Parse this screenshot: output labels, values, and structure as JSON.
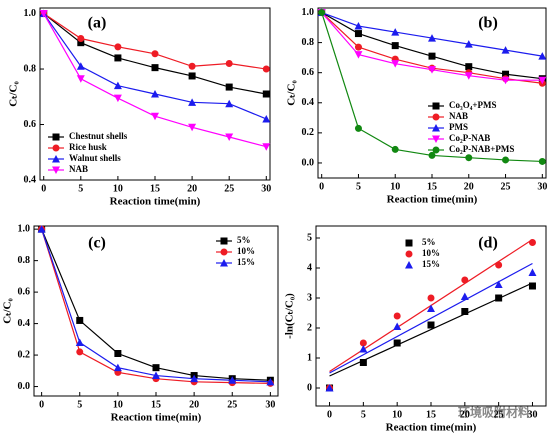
{
  "chart_data": [
    {
      "type": "line",
      "panel_label": "(a)",
      "xlabel": "Reaction time(min)",
      "ylabel": "Cₜ/C₀",
      "x": [
        0,
        5,
        10,
        15,
        20,
        25,
        30
      ],
      "xlim": [
        -0.5,
        30.5
      ],
      "xticks": [
        0,
        5,
        10,
        15,
        20,
        25,
        30
      ],
      "ylim": [
        0.4,
        1.02
      ],
      "yticks": [
        0.4,
        0.6,
        0.8,
        {
          "value": 1,
          "label": "1.0"
        }
      ],
      "legend": "lower left",
      "series": [
        {
          "name": "Chestnut shells",
          "color": "#000000",
          "marker": "square",
          "values": [
            1,
            0.895,
            0.84,
            0.805,
            0.775,
            0.735,
            0.71
          ]
        },
        {
          "name": "Rice husk",
          "color": "#ee1c25",
          "marker": "circle",
          "values": [
            1,
            0.91,
            0.88,
            0.855,
            0.81,
            0.82,
            0.8
          ]
        },
        {
          "name": "Walnut shells",
          "color": "#1c1cee",
          "marker": "triangle",
          "values": [
            1,
            0.81,
            0.74,
            0.71,
            0.68,
            0.675,
            0.62
          ]
        },
        {
          "name": "NAB",
          "color": "#ff00ff",
          "marker": "triangle-down",
          "values": [
            1,
            0.765,
            0.695,
            0.63,
            0.59,
            0.555,
            0.52
          ]
        }
      ]
    },
    {
      "type": "line",
      "panel_label": "(b)",
      "xlabel": "Reaction time(min)",
      "ylabel": "Cₜ/C₀",
      "x": [
        0,
        5,
        10,
        15,
        20,
        25,
        30
      ],
      "xlim": [
        -0.5,
        30.5
      ],
      "xticks": [
        0,
        5,
        10,
        15,
        20,
        25,
        30
      ],
      "ylim": [
        -0.1,
        1.03
      ],
      "yticks": [
        {
          "value": 0,
          "label": "0.0"
        },
        0.2,
        0.4,
        0.6,
        0.8,
        {
          "value": 1,
          "label": "1.0"
        }
      ],
      "legend": "lower right",
      "series": [
        {
          "name": "Co₃O₄+PMS",
          "color": "#000000",
          "marker": "square",
          "values": [
            1,
            0.86,
            0.78,
            0.71,
            0.64,
            0.59,
            0.56
          ]
        },
        {
          "name": "NAB",
          "color": "#ee1c25",
          "marker": "circle",
          "values": [
            1,
            0.77,
            0.69,
            0.63,
            0.6,
            0.56,
            0.53
          ]
        },
        {
          "name": "PMS",
          "color": "#1c1cee",
          "marker": "triangle",
          "values": [
            1,
            0.91,
            0.87,
            0.83,
            0.79,
            0.75,
            0.71
          ]
        },
        {
          "name": "Co₂P-NAB",
          "color": "#ff00ff",
          "marker": "triangle-down",
          "values": [
            1,
            0.72,
            0.66,
            0.62,
            0.58,
            0.55,
            0.55
          ]
        },
        {
          "name": "Co₂P-NAB+PMS",
          "color": "#118811",
          "marker": "circle",
          "values": [
            1,
            0.23,
            0.09,
            0.05,
            0.035,
            0.02,
            0.01
          ]
        }
      ]
    },
    {
      "type": "line",
      "panel_label": "(c)",
      "xlabel": "Reaction time(min)",
      "ylabel": "Cₜ/C₀",
      "x": [
        0,
        5,
        10,
        15,
        20,
        25,
        30
      ],
      "xlim": [
        -1,
        31
      ],
      "xticks": [
        0,
        5,
        10,
        15,
        20,
        25,
        30
      ],
      "ylim": [
        -0.06,
        1.02
      ],
      "yticks": [
        {
          "value": 0,
          "label": "0.0"
        },
        0.2,
        0.4,
        0.6,
        0.8,
        {
          "value": 1,
          "label": "1.0"
        }
      ],
      "legend": "upper right",
      "series": [
        {
          "name": "5%",
          "color": "#000000",
          "marker": "square",
          "values": [
            1,
            0.42,
            0.21,
            0.12,
            0.07,
            0.05,
            0.04
          ]
        },
        {
          "name": "10%",
          "color": "#ee1c25",
          "marker": "circle",
          "values": [
            1,
            0.22,
            0.09,
            0.05,
            0.03,
            0.025,
            0.02
          ]
        },
        {
          "name": "15%",
          "color": "#1c1cee",
          "marker": "triangle",
          "values": [
            1,
            0.28,
            0.12,
            0.07,
            0.05,
            0.04,
            0.03
          ]
        }
      ]
    },
    {
      "type": "scatter",
      "panel_label": "(d)",
      "xlabel": "Reaction time(min)",
      "ylabel": "-ln(Cₜ/C₀)",
      "x": [
        0,
        5,
        10,
        15,
        20,
        25,
        30
      ],
      "xlim": [
        -2,
        32
      ],
      "xticks": [
        0,
        5,
        10,
        15,
        20,
        25,
        30
      ],
      "ylim": [
        -0.6,
        5.4
      ],
      "yticks": [
        0,
        1,
        2,
        3,
        4,
        5
      ],
      "legend": "upper center",
      "fit_x": [
        0,
        30
      ],
      "series": [
        {
          "name": "5%",
          "color": "#000000",
          "marker": "square",
          "values": [
            0,
            0.85,
            1.5,
            2.1,
            2.55,
            3.0,
            3.4
          ],
          "fit": [
            0.4,
            3.5
          ]
        },
        {
          "name": "10%",
          "color": "#ee1c25",
          "marker": "circle",
          "values": [
            0,
            1.5,
            2.4,
            3.0,
            3.6,
            4.1,
            4.85
          ],
          "fit": [
            0.55,
            4.95
          ]
        },
        {
          "name": "15%",
          "color": "#1c1cee",
          "marker": "triangle",
          "values": [
            0,
            1.3,
            2.05,
            2.65,
            3.05,
            3.45,
            3.85
          ],
          "fit": [
            0.5,
            4.15
          ]
        }
      ]
    }
  ],
  "watermark": "环境吸附材料"
}
